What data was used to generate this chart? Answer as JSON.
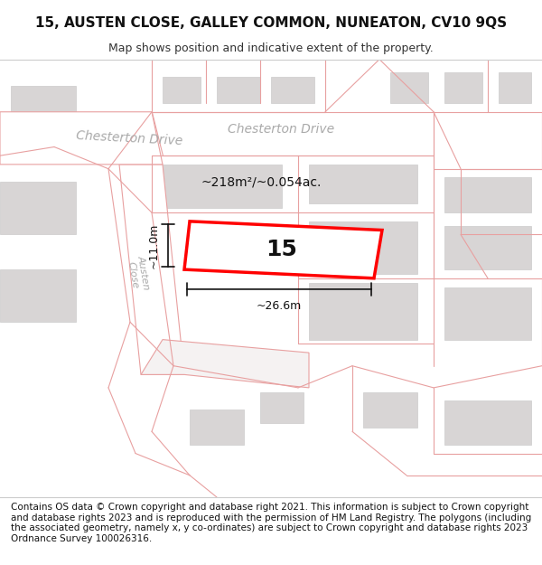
{
  "title": "15, AUSTEN CLOSE, GALLEY COMMON, NUNEATON, CV10 9QS",
  "subtitle": "Map shows position and indicative extent of the property.",
  "footer": "Contains OS data © Crown copyright and database right 2021. This information is subject to Crown copyright and database rights 2023 and is reproduced with the permission of HM Land Registry. The polygons (including the associated geometry, namely x, y co-ordinates) are subject to Crown copyright and database rights 2023 Ordnance Survey 100026316.",
  "bg_color": "#f7f4f4",
  "map_bg": "#f0eeee",
  "road_color": "#ffffff",
  "boundary_color": "#e8a0a0",
  "highlight_color": "#ff0000",
  "highlight_fill": "#ffffff",
  "street_label_color": "#aaaaaa",
  "area_label": "~218m²/~0.054ac.",
  "width_label": "~26.6m",
  "height_label": "~11.0m",
  "plot_number": "15",
  "title_fontsize": 11,
  "subtitle_fontsize": 9,
  "footer_fontsize": 7.5
}
